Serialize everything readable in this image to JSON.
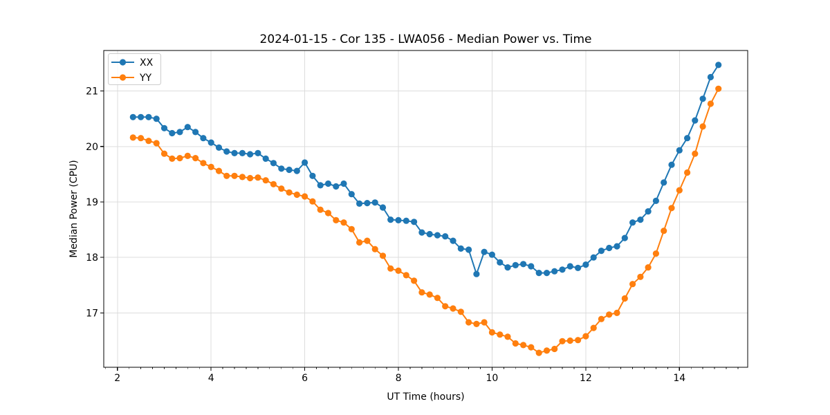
{
  "chart_data": {
    "type": "line",
    "title": "2024-01-15 - Cor 135 - LWA056 - Median Power vs. Time",
    "xlabel": "UT Time (hours)",
    "ylabel": "Median Power (CPU)",
    "grid": true,
    "legend_position": "upper-left",
    "xlim": [
      1.708,
      15.458
    ],
    "ylim": [
      16.02,
      21.73
    ],
    "xticks": [
      2,
      4,
      6,
      8,
      10,
      12,
      14
    ],
    "yticks": [
      17,
      18,
      19,
      20,
      21
    ],
    "x_minor_step": 0.25,
    "grid_color": "#dcdcdc",
    "x": [
      2.333,
      2.5,
      2.667,
      2.833,
      3.0,
      3.167,
      3.333,
      3.5,
      3.667,
      3.833,
      4.0,
      4.167,
      4.333,
      4.5,
      4.667,
      4.833,
      5.0,
      5.167,
      5.333,
      5.5,
      5.667,
      5.833,
      6.0,
      6.167,
      6.333,
      6.5,
      6.667,
      6.833,
      7.0,
      7.167,
      7.333,
      7.5,
      7.667,
      7.833,
      8.0,
      8.167,
      8.333,
      8.5,
      8.667,
      8.833,
      9.0,
      9.167,
      9.333,
      9.5,
      9.667,
      9.833,
      10.0,
      10.167,
      10.333,
      10.5,
      10.667,
      10.833,
      11.0,
      11.167,
      11.333,
      11.5,
      11.667,
      11.833,
      12.0,
      12.167,
      12.333,
      12.5,
      12.667,
      12.833,
      13.0,
      13.167,
      13.333,
      13.5,
      13.667,
      13.833,
      14.0,
      14.167,
      14.333,
      14.5,
      14.667,
      14.833
    ],
    "series": [
      {
        "name": "XX",
        "color": "#1f77b4",
        "values": [
          20.53,
          20.53,
          20.53,
          20.5,
          20.33,
          20.24,
          20.26,
          20.35,
          20.26,
          20.15,
          20.07,
          19.98,
          19.91,
          19.88,
          19.88,
          19.86,
          19.88,
          19.78,
          19.7,
          19.6,
          19.58,
          19.56,
          19.71,
          19.47,
          19.3,
          19.33,
          19.28,
          19.33,
          19.14,
          18.97,
          18.98,
          18.99,
          18.9,
          18.68,
          18.67,
          18.66,
          18.64,
          18.45,
          18.42,
          18.4,
          18.38,
          18.3,
          18.16,
          18.14,
          17.7,
          18.1,
          18.05,
          17.91,
          17.82,
          17.86,
          17.88,
          17.84,
          17.72,
          17.72,
          17.75,
          17.78,
          17.84,
          17.81,
          17.87,
          18.0,
          18.12,
          18.17,
          18.2,
          18.35,
          18.63,
          18.68,
          18.83,
          19.02,
          19.35,
          19.67,
          19.93,
          20.15,
          20.47,
          20.86,
          21.25,
          21.47
        ]
      },
      {
        "name": "YY",
        "color": "#ff7f0e",
        "values": [
          20.16,
          20.15,
          20.1,
          20.06,
          19.87,
          19.78,
          19.79,
          19.83,
          19.79,
          19.7,
          19.63,
          19.56,
          19.47,
          19.47,
          19.45,
          19.43,
          19.44,
          19.39,
          19.32,
          19.24,
          19.17,
          19.13,
          19.1,
          19.01,
          18.86,
          18.8,
          18.67,
          18.63,
          18.51,
          18.27,
          18.3,
          18.15,
          18.03,
          17.8,
          17.76,
          17.68,
          17.58,
          17.37,
          17.33,
          17.27,
          17.12,
          17.08,
          17.02,
          16.83,
          16.8,
          16.83,
          16.65,
          16.61,
          16.57,
          16.45,
          16.42,
          16.38,
          16.28,
          16.32,
          16.35,
          16.49,
          16.5,
          16.51,
          16.58,
          16.73,
          16.89,
          16.97,
          17.0,
          17.26,
          17.52,
          17.65,
          17.82,
          18.07,
          18.48,
          18.89,
          19.21,
          19.53,
          19.87,
          20.36,
          20.77,
          21.04
        ]
      }
    ]
  }
}
